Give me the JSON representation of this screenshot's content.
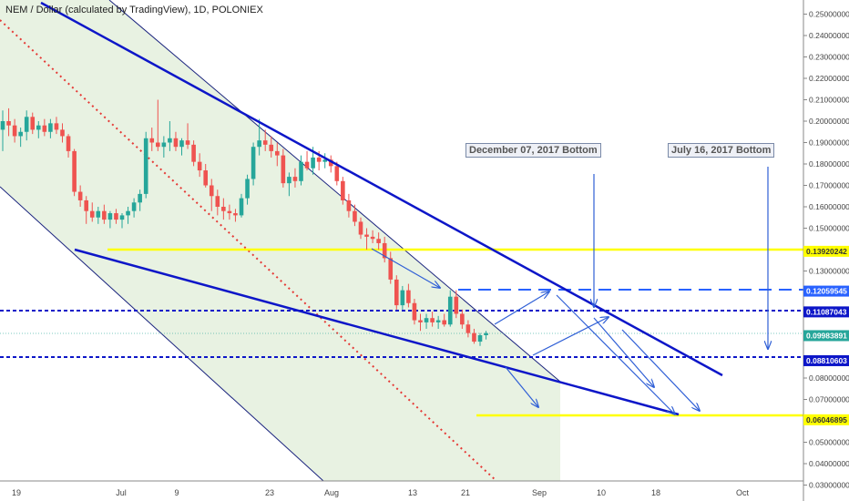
{
  "title": "NEM / Dollar (calculated by TradingView), 1D, POLONIEX",
  "annotations": [
    "December 07, 2017 Bottom",
    "July 16, 2017 Bottom"
  ],
  "chart_data": {
    "type": "candlestick",
    "ylim": [
      0.025,
      0.259
    ],
    "y_ticks": [
      "0.25000000",
      "0.24000000",
      "0.23000000",
      "0.22000000",
      "0.21000000",
      "0.20000000",
      "0.19000000",
      "0.18000000",
      "0.17000000",
      "0.16000000",
      "0.15000000",
      "0.13000000",
      "0.08000000",
      "0.07000000",
      "0.05000000",
      "0.04000000",
      "0.03000000"
    ],
    "x_ticks": [
      "19",
      "Jul",
      "9",
      "23",
      "Aug",
      "13",
      "21",
      "Sep",
      "10",
      "18",
      "Oct"
    ],
    "price_labels": [
      {
        "label": "0.13920242",
        "value": 0.1392,
        "color": "#ffff00",
        "text_color": "#333"
      },
      {
        "label": "0.12059545",
        "value": 0.1206,
        "color": "#2962ff",
        "text_color": "#fff"
      },
      {
        "label": "0.11087043",
        "value": 0.1109,
        "color": "#0d16c8",
        "text_color": "#fff"
      },
      {
        "label": "0.09983891",
        "value": 0.0998,
        "color": "#26a69a",
        "text_color": "#fff"
      },
      {
        "label": "0.08810603",
        "value": 0.0881,
        "color": "#0d16c8",
        "text_color": "#fff"
      },
      {
        "label": "0.06046895",
        "value": 0.0605,
        "color": "#ffff00",
        "text_color": "#333"
      }
    ],
    "candles": [
      [
        0.196,
        0.205,
        0.186,
        0.2
      ],
      [
        0.2,
        0.206,
        0.193,
        0.198
      ],
      [
        0.198,
        0.201,
        0.19,
        0.193
      ],
      [
        0.193,
        0.197,
        0.188,
        0.195
      ],
      [
        0.195,
        0.205,
        0.191,
        0.202
      ],
      [
        0.202,
        0.204,
        0.194,
        0.196
      ],
      [
        0.196,
        0.2,
        0.192,
        0.198
      ],
      [
        0.198,
        0.201,
        0.193,
        0.195
      ],
      [
        0.195,
        0.201,
        0.192,
        0.199
      ],
      [
        0.199,
        0.202,
        0.194,
        0.196
      ],
      [
        0.196,
        0.199,
        0.19,
        0.193
      ],
      [
        0.193,
        0.194,
        0.183,
        0.186
      ],
      [
        0.186,
        0.187,
        0.165,
        0.167
      ],
      [
        0.167,
        0.17,
        0.16,
        0.163
      ],
      [
        0.163,
        0.165,
        0.152,
        0.158
      ],
      [
        0.158,
        0.162,
        0.153,
        0.155
      ],
      [
        0.155,
        0.16,
        0.152,
        0.158
      ],
      [
        0.158,
        0.161,
        0.152,
        0.154
      ],
      [
        0.154,
        0.158,
        0.15,
        0.157
      ],
      [
        0.157,
        0.159,
        0.152,
        0.154
      ],
      [
        0.154,
        0.157,
        0.15,
        0.156
      ],
      [
        0.156,
        0.16,
        0.152,
        0.158
      ],
      [
        0.158,
        0.164,
        0.155,
        0.162
      ],
      [
        0.162,
        0.168,
        0.158,
        0.166
      ],
      [
        0.166,
        0.195,
        0.164,
        0.192
      ],
      [
        0.192,
        0.197,
        0.186,
        0.19
      ],
      [
        0.19,
        0.21,
        0.186,
        0.188
      ],
      [
        0.188,
        0.193,
        0.183,
        0.19
      ],
      [
        0.19,
        0.2,
        0.186,
        0.192
      ],
      [
        0.192,
        0.195,
        0.186,
        0.188
      ],
      [
        0.188,
        0.192,
        0.184,
        0.191
      ],
      [
        0.191,
        0.199,
        0.187,
        0.189
      ],
      [
        0.189,
        0.191,
        0.179,
        0.181
      ],
      [
        0.181,
        0.185,
        0.174,
        0.177
      ],
      [
        0.177,
        0.18,
        0.169,
        0.17
      ],
      [
        0.17,
        0.173,
        0.158,
        0.165
      ],
      [
        0.165,
        0.168,
        0.156,
        0.16
      ],
      [
        0.16,
        0.164,
        0.154,
        0.158
      ],
      [
        0.158,
        0.161,
        0.154,
        0.157
      ],
      [
        0.157,
        0.159,
        0.153,
        0.156
      ],
      [
        0.156,
        0.166,
        0.155,
        0.164
      ],
      [
        0.164,
        0.175,
        0.161,
        0.173
      ],
      [
        0.173,
        0.19,
        0.17,
        0.188
      ],
      [
        0.188,
        0.201,
        0.184,
        0.191
      ],
      [
        0.191,
        0.196,
        0.186,
        0.189
      ],
      [
        0.189,
        0.193,
        0.183,
        0.186
      ],
      [
        0.186,
        0.19,
        0.179,
        0.184
      ],
      [
        0.184,
        0.187,
        0.169,
        0.171
      ],
      [
        0.171,
        0.176,
        0.165,
        0.174
      ],
      [
        0.174,
        0.178,
        0.169,
        0.172
      ],
      [
        0.172,
        0.184,
        0.17,
        0.181
      ],
      [
        0.181,
        0.186,
        0.177,
        0.178
      ],
      [
        0.178,
        0.188,
        0.175,
        0.183
      ],
      [
        0.183,
        0.186,
        0.177,
        0.181
      ],
      [
        0.181,
        0.185,
        0.178,
        0.182
      ],
      [
        0.182,
        0.184,
        0.176,
        0.179
      ],
      [
        0.179,
        0.181,
        0.17,
        0.172
      ],
      [
        0.172,
        0.174,
        0.161,
        0.163
      ],
      [
        0.163,
        0.166,
        0.155,
        0.158
      ],
      [
        0.158,
        0.161,
        0.151,
        0.153
      ],
      [
        0.153,
        0.155,
        0.145,
        0.147
      ],
      [
        0.147,
        0.15,
        0.14,
        0.146
      ],
      [
        0.146,
        0.149,
        0.143,
        0.145
      ],
      [
        0.145,
        0.148,
        0.14,
        0.143
      ],
      [
        0.143,
        0.146,
        0.134,
        0.136
      ],
      [
        0.136,
        0.139,
        0.124,
        0.126
      ],
      [
        0.126,
        0.128,
        0.112,
        0.114
      ],
      [
        0.114,
        0.123,
        0.112,
        0.121
      ],
      [
        0.121,
        0.124,
        0.113,
        0.115
      ],
      [
        0.115,
        0.117,
        0.105,
        0.107
      ],
      [
        0.107,
        0.11,
        0.102,
        0.106
      ],
      [
        0.106,
        0.11,
        0.103,
        0.108
      ],
      [
        0.108,
        0.111,
        0.104,
        0.106
      ],
      [
        0.106,
        0.109,
        0.103,
        0.107
      ],
      [
        0.107,
        0.11,
        0.104,
        0.105
      ],
      [
        0.105,
        0.121,
        0.104,
        0.118
      ],
      [
        0.118,
        0.121,
        0.108,
        0.11
      ],
      [
        0.11,
        0.112,
        0.103,
        0.105
      ],
      [
        0.105,
        0.107,
        0.099,
        0.101
      ],
      [
        0.101,
        0.103,
        0.096,
        0.097
      ],
      [
        0.097,
        0.101,
        0.095,
        0.1
      ],
      [
        0.1,
        0.102,
        0.098,
        0.101
      ]
    ]
  }
}
